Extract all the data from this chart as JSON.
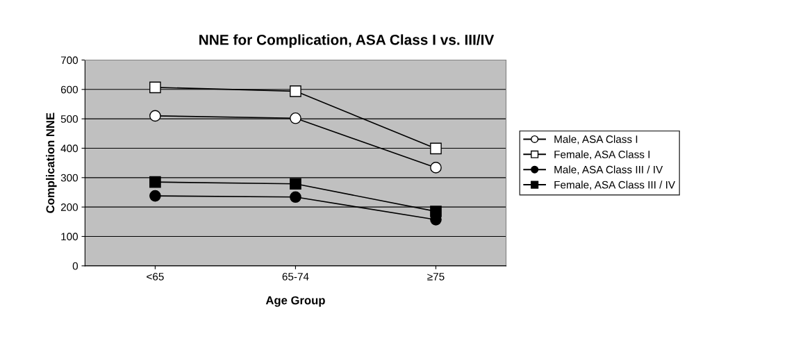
{
  "chart_data": {
    "type": "line",
    "title": "NNE for Complication, ASA Class I vs. III/IV",
    "xlabel": "Age Group",
    "ylabel": "Complication NNE",
    "categories": [
      "<65",
      "65-74",
      "≥75"
    ],
    "series": [
      {
        "name": "Male, ASA Class I",
        "color": "#ffffff",
        "marker": "circle",
        "values": [
          510,
          502,
          334
        ]
      },
      {
        "name": "Female, ASA Class I",
        "color": "#ffffff",
        "marker": "square",
        "values": [
          607,
          594,
          399
        ]
      },
      {
        "name": "Male, ASA Class III / IV",
        "color": "#000000",
        "marker": "circle",
        "values": [
          238,
          234,
          157
        ]
      },
      {
        "name": "Female, ASA Class III / IV",
        "color": "#000000",
        "marker": "square",
        "values": [
          285,
          279,
          185
        ]
      }
    ],
    "ylim": [
      0,
      700
    ],
    "yticks": [
      0,
      100,
      200,
      300,
      400,
      500,
      600,
      700
    ],
    "grid": "y",
    "legend": "right",
    "line_style": "solid"
  }
}
